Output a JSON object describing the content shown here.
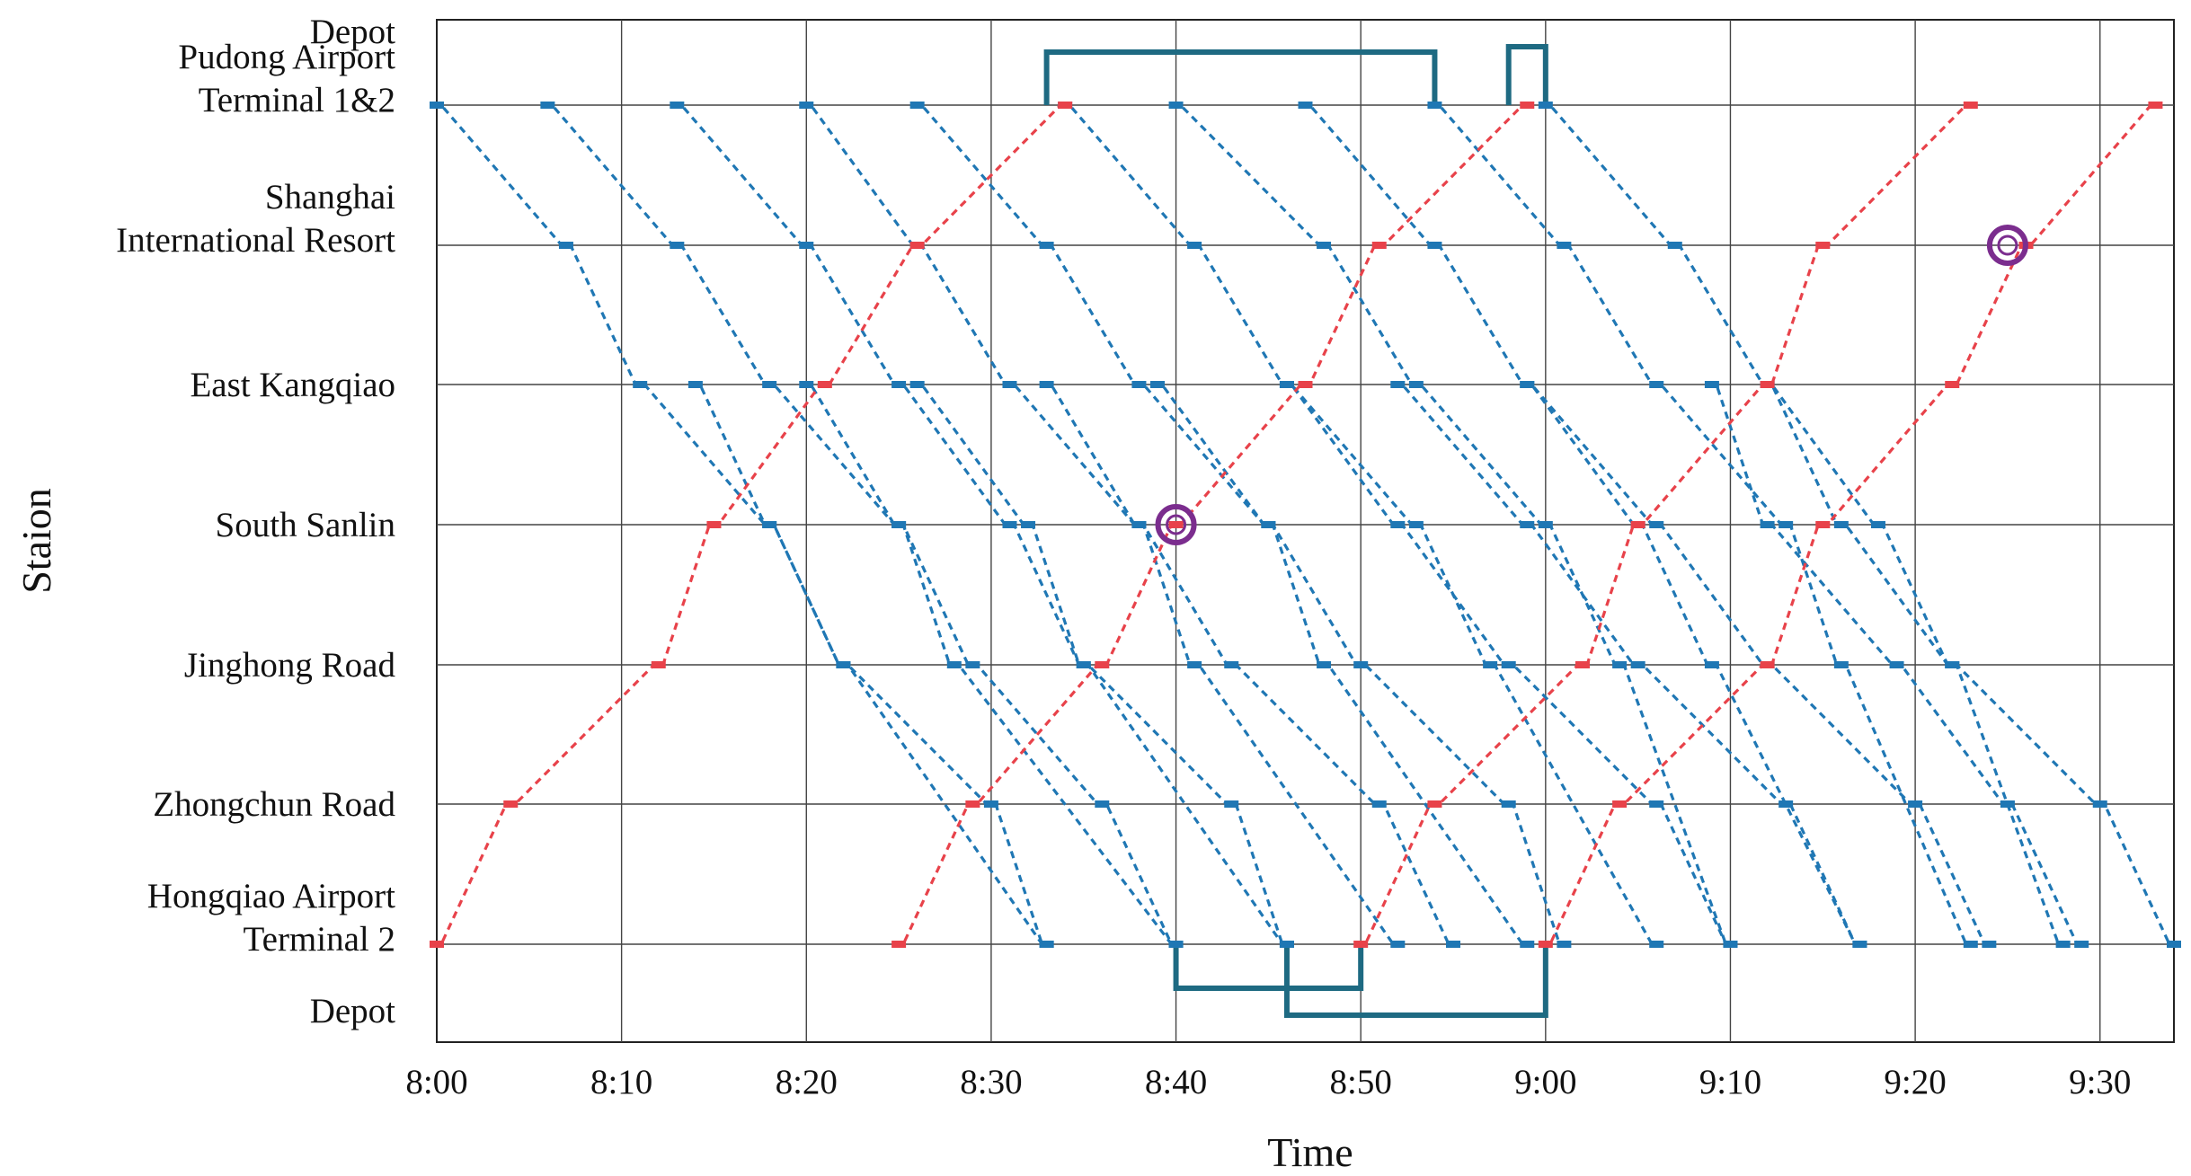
{
  "chart_data": {
    "type": "line",
    "xlabel": "Time",
    "ylabel": "Staion",
    "x_ticks": [
      "8:00",
      "8:10",
      "8:20",
      "8:30",
      "8:40",
      "8:50",
      "9:00",
      "9:10",
      "9:20",
      "9:30"
    ],
    "x_range": [
      "8:00",
      "9:34"
    ],
    "grid": true,
    "stations": [
      [
        "Depot"
      ],
      [
        "Pudong Airport",
        "Terminal 1&2"
      ],
      [
        "Shanghai",
        "International Resort"
      ],
      [
        "East Kangqiao"
      ],
      [
        "South Sanlin"
      ],
      [
        "Jinghong Road"
      ],
      [
        "Zhongchun Road"
      ],
      [
        "Hongqiao Airport",
        "Terminal 2"
      ],
      [
        "Depot"
      ]
    ],
    "colors": {
      "outbound": "#1f77b4",
      "inbound": "#e8424a",
      "depot": "#1e6a82",
      "highlight": "#7b2d8e",
      "grid": "#444444"
    },
    "series": [
      {
        "direction": "outbound",
        "trips": [
          [
            "8:00",
            "8:07",
            "8:11",
            "8:18",
            "8:22",
            "8:33"
          ],
          [
            "8:06",
            "8:13",
            "8:18",
            "8:25",
            "8:28",
            "8:40"
          ],
          [
            "8:13",
            "8:20",
            "8:25",
            "8:31",
            "8:35",
            "8:46"
          ],
          [
            "8:20",
            "8:26",
            "8:31",
            "8:38",
            "8:41",
            "8:52"
          ],
          [
            "8:26",
            "8:33",
            "8:38",
            "8:45",
            "8:48",
            "8:59"
          ],
          [
            "8:34",
            "8:41",
            "8:46",
            "8:53",
            "8:57",
            "9:06"
          ],
          [
            "8:40",
            "8:48",
            "8:53",
            "9:00",
            "9:04",
            "9:10"
          ],
          [
            "8:47",
            "8:54",
            "8:59",
            "9:05",
            "9:09",
            "9:17"
          ],
          [
            "8:54",
            "9:01",
            "9:06",
            "9:13",
            "9:16",
            "9:23"
          ],
          [
            "9:00",
            "9:07",
            "9:12",
            "9:18",
            "9:22",
            "9:28"
          ]
        ]
      },
      {
        "direction": "outbound-extended",
        "trips": [
          [
            "8:14",
            "8:18",
            "8:22",
            "8:30",
            "8:33"
          ],
          [
            "8:20",
            "8:25",
            "8:29",
            "8:36",
            "8:40"
          ],
          [
            "8:26",
            "8:32",
            "8:35",
            "8:43",
            "8:46"
          ],
          [
            "8:33",
            "8:38",
            "8:43",
            "8:51",
            "8:55"
          ],
          [
            "8:39",
            "8:45",
            "8:50",
            "8:58",
            "9:01"
          ],
          [
            "8:46",
            "8:52",
            "8:58",
            "9:06",
            "9:10"
          ],
          [
            "8:52",
            "8:59",
            "9:05",
            "9:13",
            "9:17"
          ],
          [
            "8:59",
            "9:06",
            "9:12",
            "9:20",
            "9:24"
          ],
          [
            "9:09",
            "9:12",
            "9:19",
            "9:25",
            "9:29"
          ],
          [
            "9:12",
            "9:16",
            "9:22",
            "9:30",
            "9:34"
          ]
        ]
      },
      {
        "direction": "inbound",
        "trips": [
          [
            "8:00",
            "8:04",
            "8:12",
            "8:15",
            "8:21",
            "8:26",
            "8:34"
          ],
          [
            "8:25",
            "8:29",
            "8:36",
            "8:40",
            "8:47",
            "8:51",
            "8:59"
          ],
          [
            "8:50",
            "8:54",
            "9:02",
            "9:05",
            "9:12",
            "9:15",
            "9:23"
          ],
          [
            "9:00",
            "9:04",
            "9:12",
            "9:15",
            "9:22",
            "9:26",
            "9:33"
          ]
        ]
      }
    ],
    "depot_moves": [
      {
        "from": "Depot",
        "to": "Pudong Airport Terminal 1&2",
        "start": "8:33",
        "end": "8:54"
      },
      {
        "from": "Depot",
        "to": "Pudong Airport Terminal 1&2",
        "start": "8:58",
        "end": "9:00"
      },
      {
        "from": "Depot",
        "to": "Hongqiao Airport Terminal 2",
        "start": "8:40",
        "end": "8:50"
      },
      {
        "from": "Depot",
        "to": "Hongqiao Airport Terminal 2",
        "start": "8:46",
        "end": "9:00"
      }
    ],
    "highlights": [
      {
        "station": "South Sanlin",
        "time": "8:40"
      },
      {
        "station": "Shanghai International Resort",
        "time": "9:25"
      }
    ]
  }
}
